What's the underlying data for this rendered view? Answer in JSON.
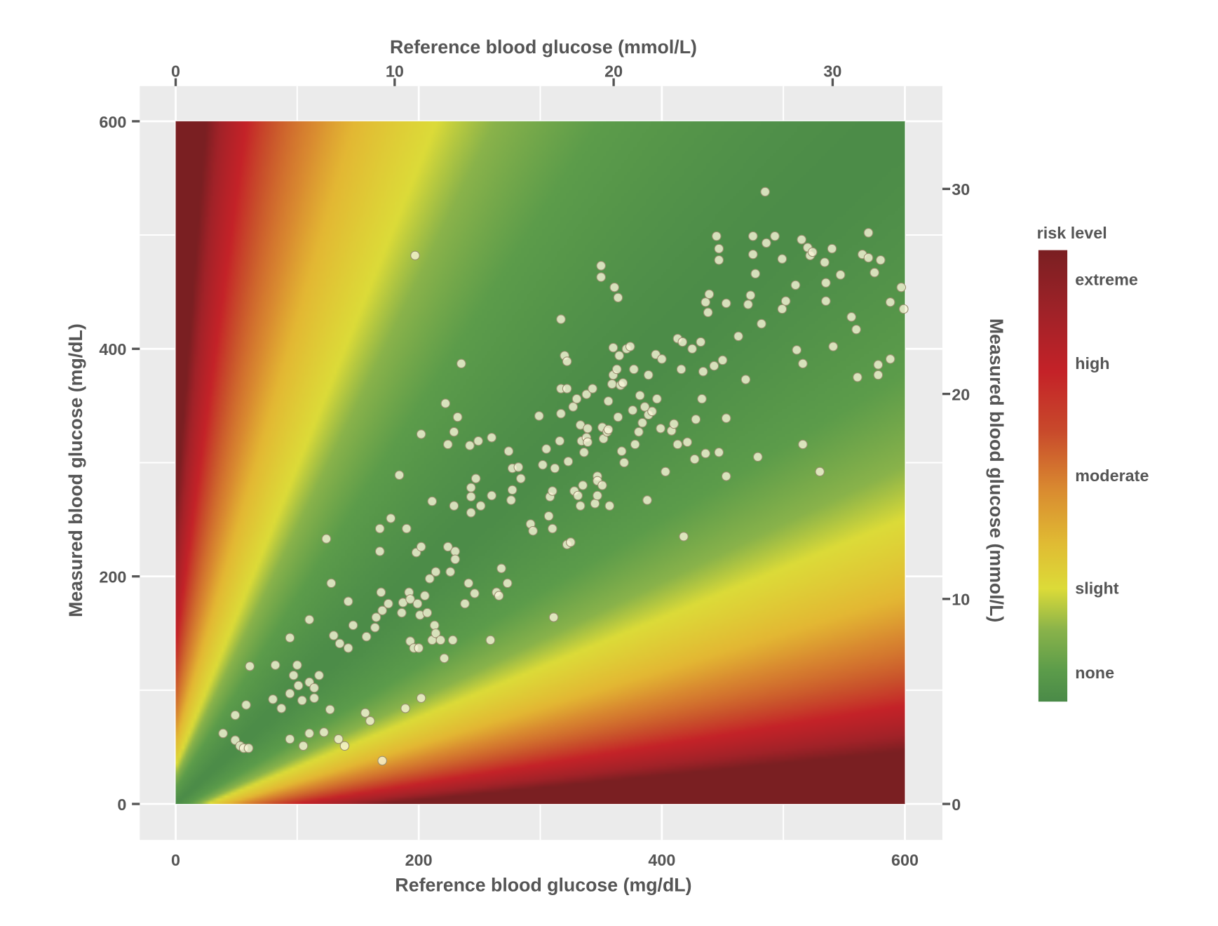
{
  "chart_data": {
    "type": "heatmap",
    "subtype": "scatter over risk surface",
    "xlabel_bottom": "Reference blood glucose (mg/dL)",
    "xlabel_top": "Reference blood glucose (mmol/L)",
    "ylabel_left": "Measured blood glucose (mg/dL)",
    "ylabel_right": "Measured blood glucose (mmol/L)",
    "xlim": [
      0,
      600
    ],
    "ylim": [
      0,
      600
    ],
    "x_ticks_bottom": [
      "0",
      "200",
      "400",
      "600"
    ],
    "x_ticks_bottom_values": [
      0,
      200,
      400,
      600
    ],
    "y_ticks_left": [
      "0",
      "200",
      "400",
      "600"
    ],
    "y_ticks_left_values": [
      0,
      200,
      400,
      600
    ],
    "x_ticks_top": [
      "0",
      "10",
      "20",
      "30"
    ],
    "x_ticks_top_values": [
      0,
      10,
      20,
      30
    ],
    "y_ticks_right": [
      "0",
      "10",
      "20",
      "30"
    ],
    "y_ticks_right_values": [
      0,
      10,
      20,
      30
    ],
    "mmol_per_mgdl": 0.0555,
    "grid": true,
    "legend": {
      "title": "risk level",
      "placement": "right",
      "levels": [
        "extreme",
        "high",
        "moderate",
        "slight",
        "none"
      ],
      "level_values": [
        4,
        3,
        2,
        1,
        0
      ]
    },
    "colors": {
      "none": "#4a8a48",
      "slight": "#dcdb38",
      "moderate": "#d98a30",
      "high": "#c42228",
      "extreme": "#7a1f22",
      "panel": "#ebebeb",
      "point_fill": "#f7f5d8",
      "point_stroke": "#9a8f70"
    },
    "points": [
      [
        39,
        62
      ],
      [
        49,
        78
      ],
      [
        49,
        56
      ],
      [
        53,
        51
      ],
      [
        56,
        49
      ],
      [
        60,
        49
      ],
      [
        58,
        87
      ],
      [
        61,
        121
      ],
      [
        82,
        122
      ],
      [
        80,
        92
      ],
      [
        87,
        84
      ],
      [
        94,
        57
      ],
      [
        94,
        146
      ],
      [
        97,
        113
      ],
      [
        100,
        122
      ],
      [
        101,
        104
      ],
      [
        94,
        97
      ],
      [
        104,
        91
      ],
      [
        105,
        51
      ],
      [
        110,
        107
      ],
      [
        110,
        162
      ],
      [
        110,
        62
      ],
      [
        114,
        93
      ],
      [
        114,
        102
      ],
      [
        118,
        113
      ],
      [
        122,
        63
      ],
      [
        124,
        233
      ],
      [
        127,
        83
      ],
      [
        128,
        194
      ],
      [
        130,
        148
      ],
      [
        134,
        57
      ],
      [
        135,
        141
      ],
      [
        139,
        51
      ],
      [
        142,
        178
      ],
      [
        142,
        137
      ],
      [
        146,
        157
      ],
      [
        156,
        80
      ],
      [
        157,
        147
      ],
      [
        160,
        73
      ],
      [
        164,
        155
      ],
      [
        165,
        164
      ],
      [
        168,
        222
      ],
      [
        168,
        242
      ],
      [
        169,
        186
      ],
      [
        170,
        170
      ],
      [
        170,
        38
      ],
      [
        175,
        176
      ],
      [
        177,
        251
      ],
      [
        184,
        289
      ],
      [
        186,
        168
      ],
      [
        187,
        177
      ],
      [
        189,
        84
      ],
      [
        190,
        242
      ],
      [
        192,
        186
      ],
      [
        193,
        180
      ],
      [
        193,
        143
      ],
      [
        196,
        137
      ],
      [
        197,
        482
      ],
      [
        198,
        221
      ],
      [
        199,
        176
      ],
      [
        200,
        137
      ],
      [
        201,
        166
      ],
      [
        202,
        325
      ],
      [
        202,
        226
      ],
      [
        202,
        93
      ],
      [
        205,
        183
      ],
      [
        207,
        168
      ],
      [
        209,
        198
      ],
      [
        211,
        144
      ],
      [
        211,
        266
      ],
      [
        213,
        157
      ],
      [
        214,
        204
      ],
      [
        214,
        150
      ],
      [
        218,
        144
      ],
      [
        221,
        128
      ],
      [
        222,
        352
      ],
      [
        224,
        316
      ],
      [
        224,
        226
      ],
      [
        226,
        204
      ],
      [
        228,
        144
      ],
      [
        229,
        327
      ],
      [
        229,
        262
      ],
      [
        230,
        222
      ],
      [
        230,
        215
      ],
      [
        232,
        340
      ],
      [
        235,
        387
      ],
      [
        238,
        176
      ],
      [
        241,
        194
      ],
      [
        242,
        315
      ],
      [
        243,
        270
      ],
      [
        243,
        256
      ],
      [
        243,
        278
      ],
      [
        246,
        185
      ],
      [
        247,
        286
      ],
      [
        249,
        319
      ],
      [
        251,
        262
      ],
      [
        259,
        144
      ],
      [
        260,
        322
      ],
      [
        260,
        271
      ],
      [
        264,
        186
      ],
      [
        266,
        183
      ],
      [
        268,
        207
      ],
      [
        273,
        194
      ],
      [
        274,
        310
      ],
      [
        276,
        267
      ],
      [
        277,
        276
      ],
      [
        277,
        295
      ],
      [
        282,
        296
      ],
      [
        284,
        286
      ],
      [
        292,
        246
      ],
      [
        294,
        240
      ],
      [
        299,
        341
      ],
      [
        302,
        298
      ],
      [
        305,
        312
      ],
      [
        307,
        253
      ],
      [
        308,
        270
      ],
      [
        310,
        275
      ],
      [
        310,
        242
      ],
      [
        311,
        164
      ],
      [
        312,
        295
      ],
      [
        316,
        319
      ],
      [
        317,
        426
      ],
      [
        317,
        343
      ],
      [
        317,
        365
      ],
      [
        320,
        394
      ],
      [
        322,
        228
      ],
      [
        322,
        389
      ],
      [
        322,
        365
      ],
      [
        323,
        301
      ],
      [
        325,
        230
      ],
      [
        327,
        349
      ],
      [
        328,
        275
      ],
      [
        330,
        356
      ],
      [
        331,
        271
      ],
      [
        333,
        333
      ],
      [
        333,
        262
      ],
      [
        334,
        319
      ],
      [
        335,
        280
      ],
      [
        336,
        309
      ],
      [
        338,
        360
      ],
      [
        338,
        322
      ],
      [
        339,
        330
      ],
      [
        339,
        318
      ],
      [
        343,
        365
      ],
      [
        345,
        264
      ],
      [
        347,
        288
      ],
      [
        347,
        271
      ],
      [
        347,
        284
      ],
      [
        351,
        280
      ],
      [
        351,
        331
      ],
      [
        350,
        473
      ],
      [
        350,
        463
      ],
      [
        352,
        321
      ],
      [
        355,
        327
      ],
      [
        356,
        354
      ],
      [
        356,
        329
      ],
      [
        357,
        262
      ],
      [
        359,
        369
      ],
      [
        360,
        401
      ],
      [
        360,
        377
      ],
      [
        361,
        454
      ],
      [
        363,
        382
      ],
      [
        364,
        445
      ],
      [
        364,
        340
      ],
      [
        365,
        394
      ],
      [
        366,
        368
      ],
      [
        367,
        310
      ],
      [
        368,
        370
      ],
      [
        369,
        300
      ],
      [
        371,
        400
      ],
      [
        374,
        402
      ],
      [
        376,
        346
      ],
      [
        377,
        382
      ],
      [
        378,
        316
      ],
      [
        381,
        327
      ],
      [
        382,
        359
      ],
      [
        384,
        335
      ],
      [
        386,
        349
      ],
      [
        388,
        267
      ],
      [
        389,
        377
      ],
      [
        389,
        342
      ],
      [
        392,
        345
      ],
      [
        395,
        395
      ],
      [
        396,
        356
      ],
      [
        399,
        330
      ],
      [
        400,
        391
      ],
      [
        403,
        292
      ],
      [
        408,
        328
      ],
      [
        410,
        334
      ],
      [
        413,
        409
      ],
      [
        413,
        316
      ],
      [
        416,
        382
      ],
      [
        417,
        406
      ],
      [
        418,
        235
      ],
      [
        421,
        318
      ],
      [
        425,
        400
      ],
      [
        427,
        303
      ],
      [
        428,
        338
      ],
      [
        432,
        406
      ],
      [
        433,
        356
      ],
      [
        434,
        380
      ],
      [
        436,
        308
      ],
      [
        436,
        441
      ],
      [
        438,
        432
      ],
      [
        439,
        448
      ],
      [
        443,
        385
      ],
      [
        445,
        499
      ],
      [
        447,
        309
      ],
      [
        447,
        488
      ],
      [
        447,
        478
      ],
      [
        450,
        390
      ],
      [
        453,
        339
      ],
      [
        453,
        440
      ],
      [
        453,
        288
      ],
      [
        463,
        411
      ],
      [
        469,
        373
      ],
      [
        471,
        439
      ],
      [
        473,
        447
      ],
      [
        475,
        499
      ],
      [
        475,
        483
      ],
      [
        477,
        466
      ],
      [
        479,
        305
      ],
      [
        482,
        422
      ],
      [
        485,
        538
      ],
      [
        486,
        493
      ],
      [
        493,
        499
      ],
      [
        499,
        479
      ],
      [
        499,
        435
      ],
      [
        502,
        442
      ],
      [
        510,
        456
      ],
      [
        511,
        399
      ],
      [
        515,
        496
      ],
      [
        516,
        387
      ],
      [
        516,
        316
      ],
      [
        520,
        489
      ],
      [
        522,
        482
      ],
      [
        524,
        485
      ],
      [
        530,
        292
      ],
      [
        534,
        476
      ],
      [
        535,
        458
      ],
      [
        535,
        442
      ],
      [
        540,
        488
      ],
      [
        541,
        402
      ],
      [
        547,
        465
      ],
      [
        556,
        428
      ],
      [
        560,
        417
      ],
      [
        561,
        375
      ],
      [
        565,
        483
      ],
      [
        570,
        502
      ],
      [
        570,
        480
      ],
      [
        575,
        467
      ],
      [
        578,
        386
      ],
      [
        578,
        377
      ],
      [
        580,
        478
      ],
      [
        588,
        441
      ],
      [
        588,
        391
      ],
      [
        597,
        454
      ],
      [
        599,
        435
      ]
    ]
  }
}
